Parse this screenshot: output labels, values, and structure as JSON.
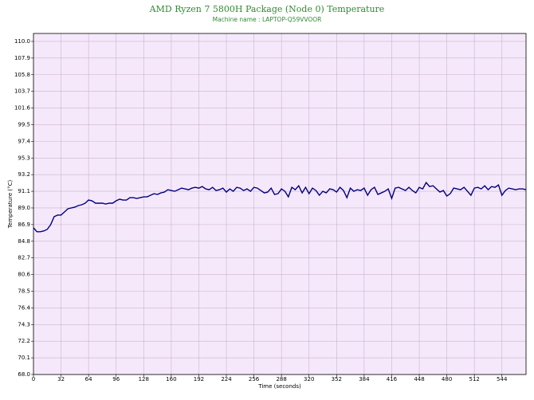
{
  "chart_data": {
    "type": "line",
    "title": "AMD Ryzen 7 5800H Package (Node 0) Temperature",
    "subtitle": "Machine name : LAPTOP-Q59VVOOR",
    "x_label": "Time (seconds)",
    "y_label": "Temperature (°C)",
    "x": [
      0,
      4,
      8,
      12,
      16,
      20,
      24,
      28,
      32,
      36,
      40,
      44,
      48,
      52,
      56,
      60,
      64,
      68,
      72,
      76,
      80,
      84,
      88,
      92,
      96,
      100,
      104,
      108,
      112,
      116,
      120,
      124,
      128,
      132,
      136,
      140,
      144,
      148,
      152,
      156,
      160,
      164,
      168,
      172,
      176,
      180,
      184,
      188,
      192,
      196,
      200,
      204,
      208,
      212,
      216,
      220,
      224,
      228,
      232,
      236,
      240,
      244,
      248,
      252,
      256,
      260,
      264,
      268,
      272,
      276,
      280,
      284,
      288,
      292,
      296,
      300,
      304,
      308,
      312,
      316,
      320,
      324,
      328,
      332,
      336,
      340,
      344,
      348,
      352,
      356,
      360,
      364,
      368,
      372,
      376,
      380,
      384,
      388,
      392,
      396,
      400,
      404,
      408,
      412,
      416,
      420,
      424,
      428,
      432,
      436,
      440,
      444,
      448,
      452,
      456,
      460,
      464,
      468,
      472,
      476,
      480,
      484,
      488,
      492,
      496,
      500,
      504,
      508,
      512,
      516,
      520,
      524,
      528,
      532,
      536,
      540,
      544,
      548,
      552,
      556,
      560,
      564,
      568,
      572
    ],
    "series": [
      {
        "name": "Temperature",
        "color": "#000080",
        "values": [
          86.5,
          86.0,
          86.0,
          86.1,
          86.3,
          86.9,
          87.9,
          88.1,
          88.1,
          88.5,
          88.9,
          89.0,
          89.1,
          89.3,
          89.4,
          89.6,
          90.0,
          89.9,
          89.6,
          89.6,
          89.6,
          89.5,
          89.6,
          89.6,
          89.9,
          90.1,
          90.0,
          90.0,
          90.3,
          90.3,
          90.2,
          90.3,
          90.4,
          90.4,
          90.6,
          90.8,
          90.7,
          90.9,
          91.0,
          91.3,
          91.2,
          91.1,
          91.3,
          91.5,
          91.4,
          91.3,
          91.5,
          91.6,
          91.5,
          91.7,
          91.4,
          91.3,
          91.6,
          91.2,
          91.3,
          91.5,
          91.0,
          91.4,
          91.1,
          91.6,
          91.5,
          91.2,
          91.4,
          91.1,
          91.6,
          91.5,
          91.2,
          90.9,
          91.0,
          91.5,
          90.7,
          90.8,
          91.4,
          91.1,
          90.4,
          91.6,
          91.3,
          91.8,
          90.9,
          91.6,
          90.8,
          91.5,
          91.2,
          90.6,
          91.1,
          90.9,
          91.4,
          91.3,
          91.0,
          91.6,
          91.2,
          90.3,
          91.5,
          91.1,
          91.3,
          91.2,
          91.5,
          90.6,
          91.3,
          91.6,
          90.7,
          90.9,
          91.1,
          91.4,
          90.2,
          91.5,
          91.6,
          91.4,
          91.2,
          91.6,
          91.2,
          90.9,
          91.6,
          91.4,
          92.2,
          91.7,
          91.8,
          91.4,
          91.0,
          91.2,
          90.5,
          90.8,
          91.5,
          91.4,
          91.3,
          91.6,
          91.1,
          90.6,
          91.5,
          91.6,
          91.4,
          91.8,
          91.3,
          91.7,
          91.6,
          91.9,
          90.6,
          91.2,
          91.5,
          91.4,
          91.3,
          91.4,
          91.4,
          91.3
        ]
      }
    ],
    "xlim": [
      0,
      572
    ],
    "xticks": [
      0,
      32,
      64,
      96,
      128,
      160,
      192,
      224,
      256,
      288,
      320,
      352,
      384,
      416,
      448,
      480,
      512,
      544
    ],
    "ylim": [
      68,
      111
    ],
    "yticks": [
      {
        "value": 68,
        "label": "68.0"
      },
      70.1,
      72.2,
      74.3,
      76.4,
      78.5,
      80.6,
      82.7,
      84.8,
      86.9,
      {
        "value": 89,
        "label": "89.0"
      },
      91.1,
      93.2,
      95.3,
      97.4,
      99.5,
      101.6,
      103.7,
      105.8,
      107.9,
      {
        "value": 110,
        "label": "110.0"
      }
    ],
    "grid": true,
    "plot_background": "#f6e8fb"
  }
}
